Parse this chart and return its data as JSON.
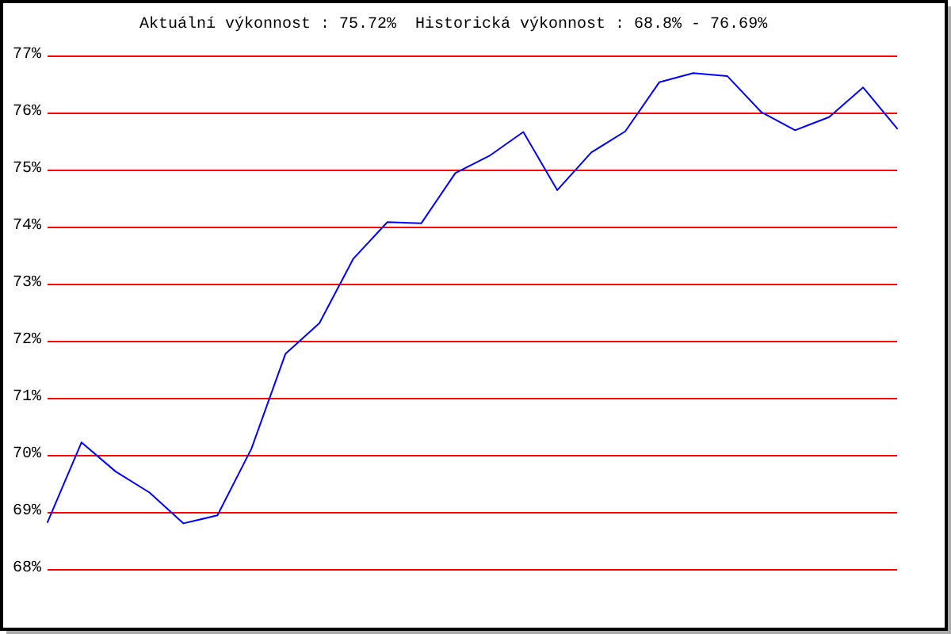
{
  "chart_data": {
    "type": "line",
    "title": "Aktuální výkonnost : 75.72%  Historická výkonnost : 68.8% - 76.69%",
    "categories": [
      null,
      null,
      null,
      null,
      null,
      null,
      null,
      null,
      null,
      null,
      null,
      null,
      null,
      null,
      null,
      null,
      null,
      null,
      null,
      null,
      null,
      null,
      null,
      null,
      null,
      null
    ],
    "values": [
      68.82,
      70.22,
      69.71,
      69.34,
      68.8,
      68.94,
      70.11,
      71.77,
      72.31,
      73.44,
      74.08,
      74.06,
      74.94,
      75.24,
      75.66,
      74.64,
      75.3,
      75.67,
      76.53,
      76.69,
      76.64,
      76.01,
      75.69,
      75.92,
      76.44,
      75.72
    ],
    "color": "#0000ff",
    "ylim": [
      68,
      77
    ],
    "yticks": [
      {
        "value": 68,
        "label": "68%"
      },
      {
        "value": 69,
        "label": "69%"
      },
      {
        "value": 70,
        "label": "70%"
      },
      {
        "value": 71,
        "label": "71%"
      },
      {
        "value": 72,
        "label": "72%"
      },
      {
        "value": 73,
        "label": "73%"
      },
      {
        "value": 74,
        "label": "74%"
      },
      {
        "value": 75,
        "label": "75%"
      },
      {
        "value": 76,
        "label": "76%"
      },
      {
        "value": 77,
        "label": "77%"
      }
    ],
    "grid": "y",
    "tick_labels": "y",
    "marker": "none",
    "line_style": "solid"
  }
}
